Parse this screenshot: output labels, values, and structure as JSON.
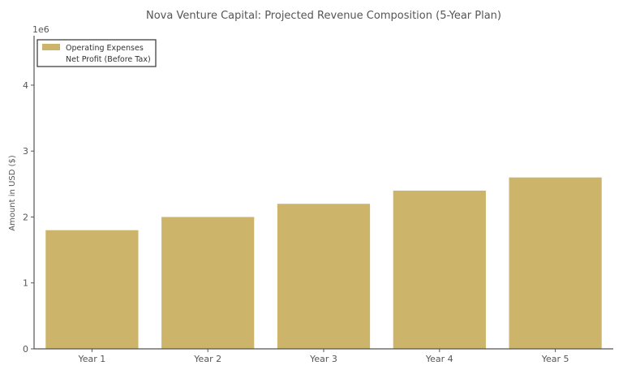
{
  "chart_data": {
    "type": "bar",
    "title": "Nova Venture Capital: Projected Revenue Composition (5-Year Plan)",
    "xlabel": "",
    "ylabel": "Amount in USD ($)",
    "y_offset_label": "1e6",
    "categories": [
      "Year 1",
      "Year 2",
      "Year 3",
      "Year 4",
      "Year 5"
    ],
    "series": [
      {
        "name": "Operating Expenses",
        "values": [
          1800000,
          2000000,
          2200000,
          2400000,
          2600000
        ],
        "color": "#cdb46b"
      },
      {
        "name": "Net Profit (Before Tax)",
        "values": [
          0,
          0,
          0,
          0,
          0
        ],
        "color": "#ffffff"
      }
    ],
    "yticks": [
      0,
      1,
      2,
      3,
      4
    ],
    "ylim": [
      0,
      4750000
    ],
    "grid": false,
    "legend_position": "top-left"
  }
}
